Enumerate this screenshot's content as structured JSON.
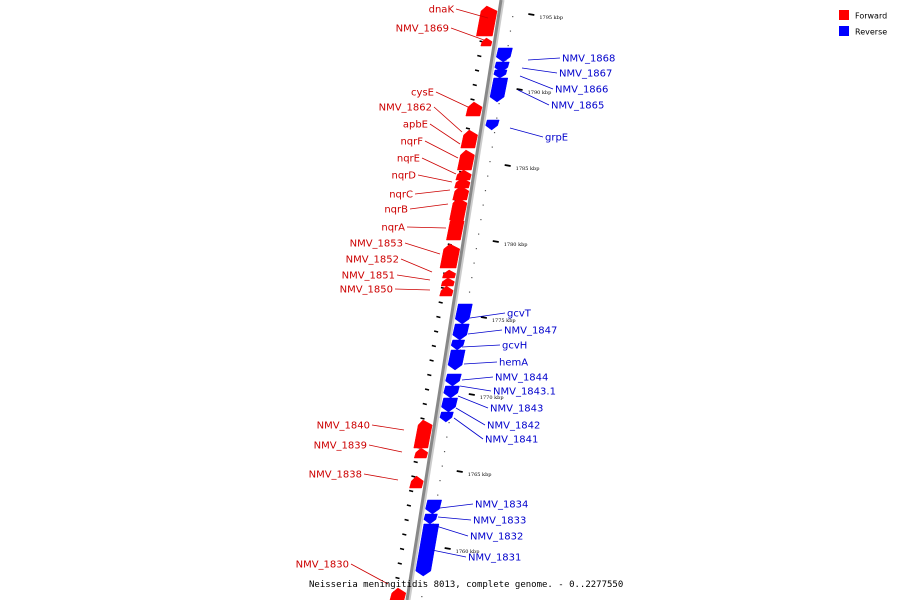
{
  "colors": {
    "forward": "#ff0000",
    "reverse": "#0000ff",
    "forward_label": "#cc0000",
    "reverse_label": "#0000cc",
    "backbone": "#888888"
  },
  "legend": {
    "forward": "Forward",
    "reverse": "Reverse"
  },
  "caption": "Neisseria meningitidis 8013, complete genome. - 0..2277550",
  "kbp_ticks": [
    "1795 kbp",
    "1790 kbp",
    "1785 kbp",
    "1780 kbp",
    "1775 kbp",
    "1770 kbp",
    "1765 kbp",
    "1760 kbp"
  ],
  "forward_genes": [
    "dnaK",
    "NMV_1869",
    "cysE",
    "NMV_1862",
    "apbE",
    "nqrF",
    "nqrE",
    "nqrD",
    "nqrC",
    "nqrB",
    "nqrA",
    "NMV_1853",
    "NMV_1852",
    "NMV_1851",
    "NMV_1850",
    "NMV_1840",
    "NMV_1839",
    "NMV_1838",
    "NMV_1830"
  ],
  "reverse_genes": [
    "NMV_1868",
    "NMV_1867",
    "NMV_1866",
    "NMV_1865",
    "grpE",
    "gcvT",
    "NMV_1847",
    "gcvH",
    "hemA",
    "NMV_1844",
    "NMV_1843.1",
    "NMV_1843",
    "NMV_1842",
    "NMV_1841",
    "NMV_1834",
    "NMV_1833",
    "NMV_1832",
    "NMV_1831"
  ]
}
